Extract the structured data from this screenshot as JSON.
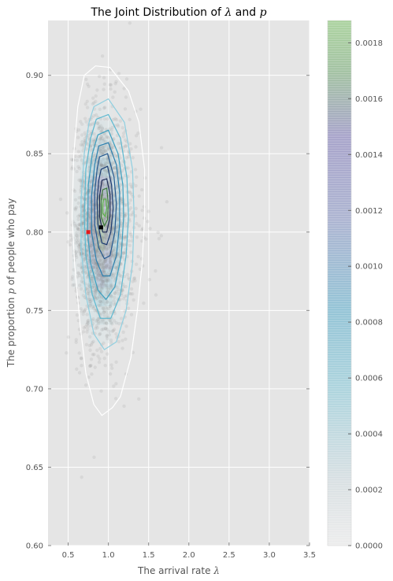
{
  "chart_data": {
    "type": "scatter",
    "title": {
      "prefix": "The Joint Distribution of ",
      "sym1": "λ",
      "middle": " and ",
      "sym2": "p"
    },
    "xlabel": {
      "prefix": "The arrival rate ",
      "sym": "λ"
    },
    "ylabel": {
      "prefix": "The proportion ",
      "sym": "p",
      "suffix": " of people who pay"
    },
    "xlim": [
      0.25,
      3.5
    ],
    "ylim": [
      0.6,
      0.935
    ],
    "x_ticks": [
      "0.5",
      "1.0",
      "1.5",
      "2.0",
      "2.5",
      "3.0",
      "3.5"
    ],
    "y_ticks": [
      "0.60",
      "0.65",
      "0.70",
      "0.75",
      "0.80",
      "0.85",
      "0.90"
    ],
    "grid": true,
    "colorbar": {
      "min": 0.0,
      "max": 0.00188,
      "ticks": [
        "0.0000",
        "0.0002",
        "0.0004",
        "0.0006",
        "0.0008",
        "0.0010",
        "0.0012",
        "0.0014",
        "0.0016",
        "0.0018"
      ]
    },
    "posterior_mean": {
      "x": 0.91,
      "y": 0.803
    },
    "true_value": {
      "x": 0.75,
      "y": 0.8
    },
    "contour_levels": [
      {
        "level": 5e-05,
        "color": "#ffffff",
        "points": [
          [
            0.84,
            0.906
          ],
          [
            1.02,
            0.905
          ],
          [
            1.25,
            0.89
          ],
          [
            1.38,
            0.87
          ],
          [
            1.45,
            0.84
          ],
          [
            1.45,
            0.81
          ],
          [
            1.42,
            0.78
          ],
          [
            1.36,
            0.75
          ],
          [
            1.28,
            0.72
          ],
          [
            1.15,
            0.695
          ],
          [
            1.05,
            0.688
          ],
          [
            0.92,
            0.683
          ],
          [
            0.82,
            0.69
          ],
          [
            0.72,
            0.71
          ],
          [
            0.65,
            0.74
          ],
          [
            0.58,
            0.78
          ],
          [
            0.55,
            0.81
          ],
          [
            0.57,
            0.85
          ],
          [
            0.62,
            0.88
          ],
          [
            0.7,
            0.9
          ]
        ]
      },
      {
        "level": 0.0002,
        "color": "#8fcfe0",
        "points": [
          [
            0.82,
            0.88
          ],
          [
            1.0,
            0.885
          ],
          [
            1.2,
            0.87
          ],
          [
            1.3,
            0.84
          ],
          [
            1.32,
            0.81
          ],
          [
            1.3,
            0.78
          ],
          [
            1.22,
            0.75
          ],
          [
            1.1,
            0.73
          ],
          [
            0.95,
            0.725
          ],
          [
            0.82,
            0.735
          ],
          [
            0.72,
            0.76
          ],
          [
            0.66,
            0.79
          ],
          [
            0.66,
            0.82
          ],
          [
            0.7,
            0.85
          ],
          [
            0.76,
            0.87
          ]
        ]
      },
      {
        "level": 0.0004,
        "color": "#5ab8d0",
        "points": [
          [
            0.85,
            0.872
          ],
          [
            1.0,
            0.875
          ],
          [
            1.15,
            0.86
          ],
          [
            1.23,
            0.835
          ],
          [
            1.25,
            0.81
          ],
          [
            1.22,
            0.785
          ],
          [
            1.15,
            0.76
          ],
          [
            1.03,
            0.745
          ],
          [
            0.9,
            0.745
          ],
          [
            0.8,
            0.76
          ],
          [
            0.72,
            0.785
          ],
          [
            0.7,
            0.81
          ],
          [
            0.72,
            0.84
          ],
          [
            0.78,
            0.86
          ]
        ]
      },
      {
        "level": 0.0006,
        "color": "#3a9fc0",
        "points": [
          [
            0.87,
            0.862
          ],
          [
            1.0,
            0.865
          ],
          [
            1.12,
            0.85
          ],
          [
            1.18,
            0.83
          ],
          [
            1.19,
            0.81
          ],
          [
            1.16,
            0.785
          ],
          [
            1.08,
            0.765
          ],
          [
            0.97,
            0.757
          ],
          [
            0.87,
            0.763
          ],
          [
            0.78,
            0.78
          ],
          [
            0.74,
            0.8
          ],
          [
            0.75,
            0.83
          ],
          [
            0.8,
            0.85
          ]
        ]
      },
      {
        "level": 0.0008,
        "color": "#2c7fae",
        "points": [
          [
            0.88,
            0.855
          ],
          [
            1.0,
            0.857
          ],
          [
            1.1,
            0.843
          ],
          [
            1.14,
            0.825
          ],
          [
            1.14,
            0.805
          ],
          [
            1.1,
            0.785
          ],
          [
            1.02,
            0.772
          ],
          [
            0.93,
            0.772
          ],
          [
            0.85,
            0.782
          ],
          [
            0.79,
            0.8
          ],
          [
            0.79,
            0.823
          ],
          [
            0.83,
            0.843
          ]
        ]
      },
      {
        "level": 0.001,
        "color": "#24588f",
        "points": [
          [
            0.89,
            0.848
          ],
          [
            0.99,
            0.85
          ],
          [
            1.07,
            0.835
          ],
          [
            1.1,
            0.818
          ],
          [
            1.08,
            0.8
          ],
          [
            1.02,
            0.785
          ],
          [
            0.95,
            0.783
          ],
          [
            0.88,
            0.79
          ],
          [
            0.83,
            0.805
          ],
          [
            0.83,
            0.825
          ],
          [
            0.86,
            0.84
          ]
        ]
      },
      {
        "level": 0.0012,
        "color": "#1a3a70",
        "points": [
          [
            0.91,
            0.84
          ],
          [
            0.99,
            0.842
          ],
          [
            1.04,
            0.83
          ],
          [
            1.06,
            0.815
          ],
          [
            1.03,
            0.8
          ],
          [
            0.98,
            0.792
          ],
          [
            0.92,
            0.793
          ],
          [
            0.87,
            0.805
          ],
          [
            0.86,
            0.82
          ],
          [
            0.88,
            0.833
          ]
        ]
      },
      {
        "level": 0.0014,
        "color": "#1e2a55",
        "points": [
          [
            0.92,
            0.833
          ],
          [
            0.98,
            0.834
          ],
          [
            1.02,
            0.824
          ],
          [
            1.02,
            0.81
          ],
          [
            0.98,
            0.8
          ],
          [
            0.93,
            0.8
          ],
          [
            0.89,
            0.81
          ],
          [
            0.89,
            0.823
          ]
        ]
      },
      {
        "level": 0.0016,
        "color": "#3d7a3a",
        "points": [
          [
            0.93,
            0.827
          ],
          [
            0.98,
            0.828
          ],
          [
            1.0,
            0.818
          ],
          [
            0.99,
            0.808
          ],
          [
            0.95,
            0.804
          ],
          [
            0.91,
            0.81
          ],
          [
            0.91,
            0.82
          ]
        ]
      },
      {
        "level": 0.0018,
        "color": "#5cb34a",
        "points": [
          [
            0.94,
            0.821
          ],
          [
            0.97,
            0.821
          ],
          [
            0.98,
            0.815
          ],
          [
            0.96,
            0.81
          ],
          [
            0.93,
            0.812
          ],
          [
            0.93,
            0.818
          ]
        ]
      }
    ]
  }
}
